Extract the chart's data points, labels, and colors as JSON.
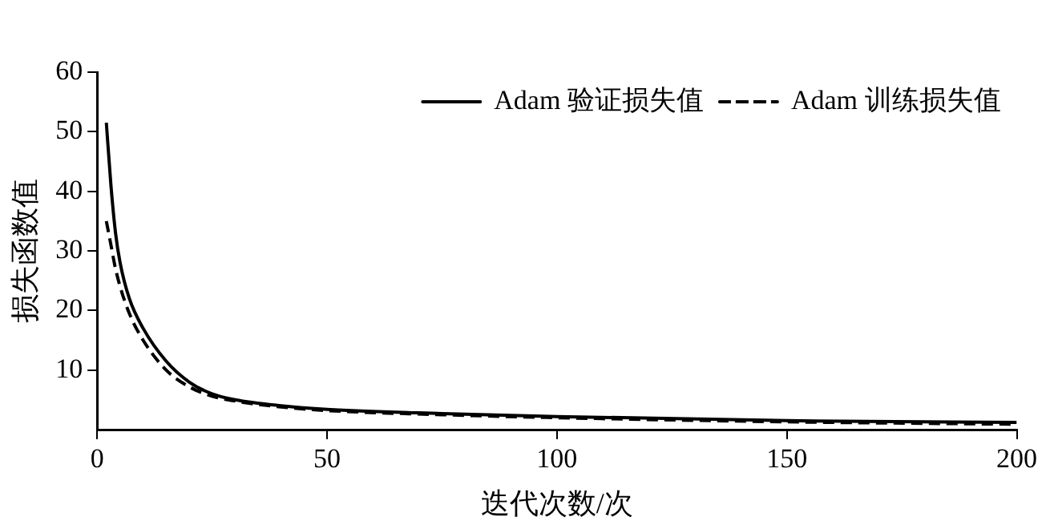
{
  "chart_data": {
    "type": "line",
    "xlabel": "迭代次数/次",
    "ylabel": "损失函数值",
    "xlim": [
      0,
      200
    ],
    "ylim": [
      0,
      60
    ],
    "xticks": [
      0,
      50,
      100,
      150,
      200
    ],
    "yticks": [
      10,
      20,
      30,
      40,
      50,
      60
    ],
    "grid": false,
    "legend": "top right",
    "marker": "none",
    "series": [
      {
        "name": "Adam 验证损失值",
        "color": "#000000",
        "line_style": "solid",
        "x": [
          2,
          3,
          4,
          5,
          7,
          10,
          15,
          20,
          25,
          30,
          40,
          50,
          75,
          100,
          150,
          200
        ],
        "values": [
          51.5,
          41,
          33,
          28,
          22,
          17,
          11.5,
          8,
          6,
          5,
          4,
          3.4,
          2.7,
          2.2,
          1.5,
          1.2
        ]
      },
      {
        "name": "Adam 训练损失值",
        "color": "#000000",
        "line_style": "dashed",
        "x": [
          2,
          3,
          4,
          5,
          7,
          10,
          15,
          20,
          25,
          30,
          40,
          50,
          75,
          100,
          150,
          200
        ],
        "values": [
          35,
          31,
          27,
          24,
          19.5,
          15,
          10,
          7.2,
          5.6,
          4.8,
          3.8,
          3.2,
          2.5,
          2,
          1.3,
          0.9
        ]
      }
    ]
  }
}
